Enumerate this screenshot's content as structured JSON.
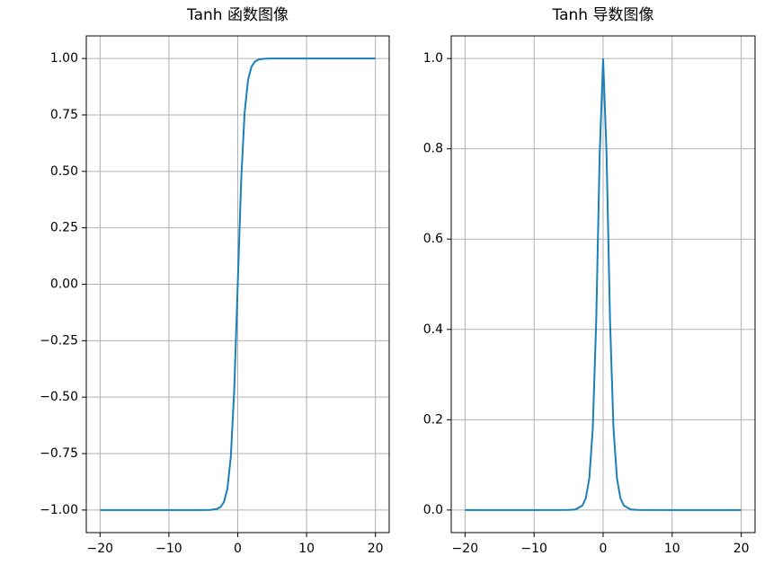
{
  "chart_data": [
    {
      "type": "line",
      "title": "Tanh 函数图像",
      "color": "#1a80bb",
      "grid": true,
      "x": [
        -20,
        -10,
        -5,
        -4,
        -3,
        -2.5,
        -2,
        -1.5,
        -1,
        -0.5,
        0,
        0.5,
        1,
        1.5,
        2,
        2.5,
        3,
        4,
        5,
        10,
        20
      ],
      "values": [
        -1,
        -1,
        -0.9999,
        -0.9993,
        -0.995,
        -0.9866,
        -0.964,
        -0.905,
        -0.762,
        -0.462,
        0,
        0.462,
        0.762,
        0.905,
        0.964,
        0.9866,
        0.995,
        0.9993,
        0.9999,
        1,
        1
      ],
      "xlim": [
        -22,
        22
      ],
      "ylim": [
        -1.1,
        1.1
      ],
      "xticks": [
        {
          "value": -20,
          "label": "−20"
        },
        {
          "value": -10,
          "label": "−10"
        },
        0,
        10,
        20
      ],
      "yticks": [
        {
          "value": -1,
          "label": "−1.00"
        },
        {
          "value": -0.75,
          "label": "−0.75"
        },
        {
          "value": -0.5,
          "label": "−0.50"
        },
        {
          "value": -0.25,
          "label": "−0.25"
        },
        {
          "value": 0,
          "label": "0.00"
        },
        {
          "value": 0.25,
          "label": "0.25"
        },
        {
          "value": 0.5,
          "label": "0.50"
        },
        {
          "value": 0.75,
          "label": "0.75"
        },
        {
          "value": 1,
          "label": "1.00"
        }
      ]
    },
    {
      "type": "line",
      "title": "Tanh 导数图像",
      "color": "#1a80bb",
      "grid": true,
      "x": [
        -20,
        -10,
        -5,
        -4,
        -3,
        -2.5,
        -2,
        -1.5,
        -1,
        -0.5,
        0,
        0.5,
        1,
        1.5,
        2,
        2.5,
        3,
        4,
        5,
        10,
        20
      ],
      "values": [
        0,
        0,
        0.0002,
        0.0013,
        0.0099,
        0.0266,
        0.0707,
        0.1807,
        0.42,
        0.7864,
        1,
        0.7864,
        0.42,
        0.1807,
        0.0707,
        0.0266,
        0.0099,
        0.0013,
        0.0002,
        0,
        0
      ],
      "xlim": [
        -22,
        22
      ],
      "ylim": [
        -0.05,
        1.05
      ],
      "xticks": [
        {
          "value": -20,
          "label": "−20"
        },
        {
          "value": -10,
          "label": "−10"
        },
        0,
        10,
        20
      ],
      "yticks": [
        {
          "value": 0,
          "label": "0.0"
        },
        {
          "value": 0.2,
          "label": "0.2"
        },
        {
          "value": 0.4,
          "label": "0.4"
        },
        {
          "value": 0.6,
          "label": "0.6"
        },
        {
          "value": 0.8,
          "label": "0.8"
        },
        {
          "value": 1,
          "label": "1.0"
        }
      ]
    }
  ]
}
